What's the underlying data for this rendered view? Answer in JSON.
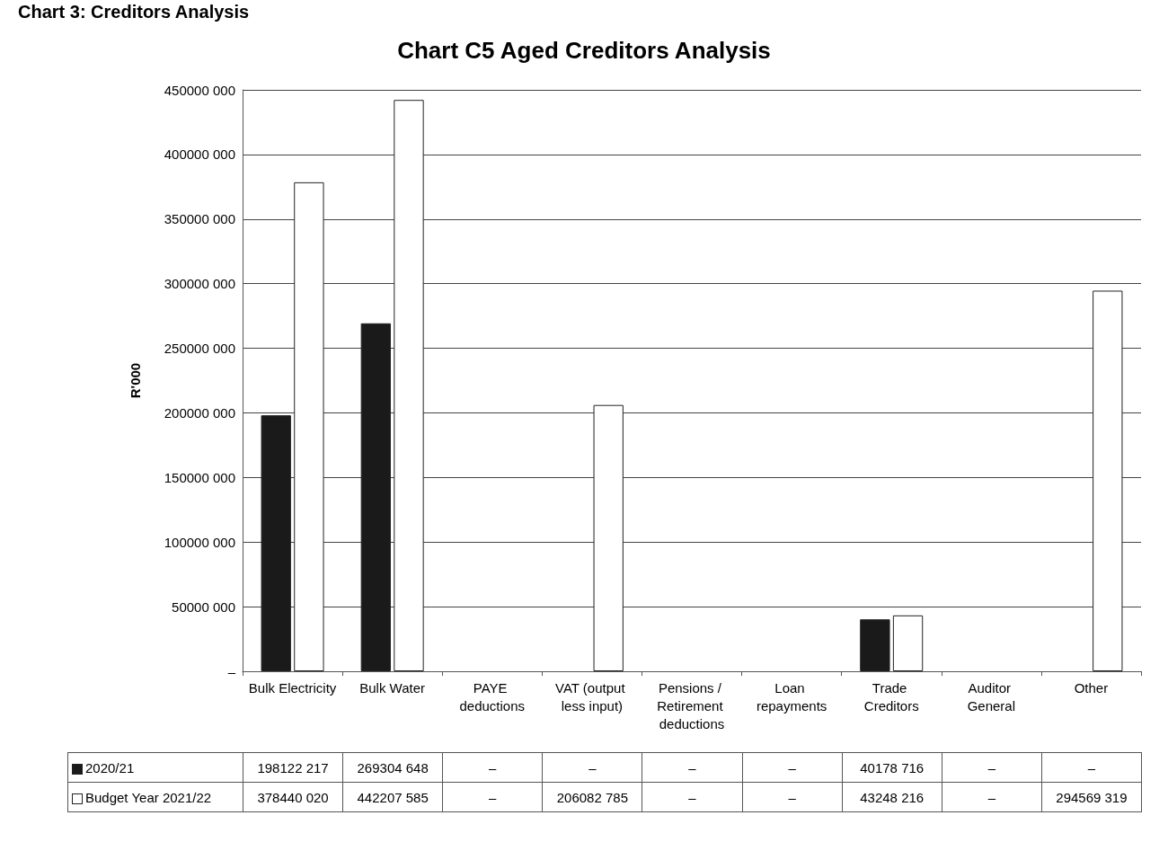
{
  "chart_data": {
    "type": "bar",
    "title": "Chart C5 Aged Creditors Analysis",
    "subtitle": "Chart 3: Creditors Analysis",
    "ylabel": "R'000",
    "categories": [
      "Bulk Electricity",
      "Bulk Water",
      "PAYE deductions",
      "VAT (output less input)",
      "Pensions / Retirement deductions",
      "Loan repayments",
      "Trade Creditors",
      "Auditor General",
      "Other"
    ],
    "series": [
      {
        "name": "2020/21",
        "color": "#1a1a1a",
        "values": [
          198122217,
          269304648,
          0,
          0,
          0,
          0,
          40178716,
          0,
          0
        ],
        "value_labels": [
          "198122 217",
          "269304 648",
          "–",
          "–",
          "–",
          "–",
          "40178 716",
          "–",
          "–"
        ]
      },
      {
        "name": "Budget Year 2021/22",
        "color": "#ffffff",
        "values": [
          378440020,
          442207585,
          0,
          206082785,
          0,
          0,
          43248216,
          0,
          294569319
        ],
        "value_labels": [
          "378440 020",
          "442207 585",
          "–",
          "206082 785",
          "–",
          "–",
          "43248 216",
          "–",
          "294569 319"
        ]
      }
    ],
    "ylim": [
      0,
      450000000
    ],
    "yticks": [
      {
        "value": 0,
        "label": "–"
      },
      {
        "value": 50000000,
        "label": "50000 000"
      },
      {
        "value": 100000000,
        "label": "100000 000"
      },
      {
        "value": 150000000,
        "label": "150000 000"
      },
      {
        "value": 200000000,
        "label": "200000 000"
      },
      {
        "value": 250000000,
        "label": "250000 000"
      },
      {
        "value": 300000000,
        "label": "300000 000"
      },
      {
        "value": 350000000,
        "label": "350000 000"
      },
      {
        "value": 400000000,
        "label": "400000 000"
      },
      {
        "value": 450000000,
        "label": "450000 000"
      }
    ],
    "grid": "y",
    "legend": "bottom left"
  }
}
